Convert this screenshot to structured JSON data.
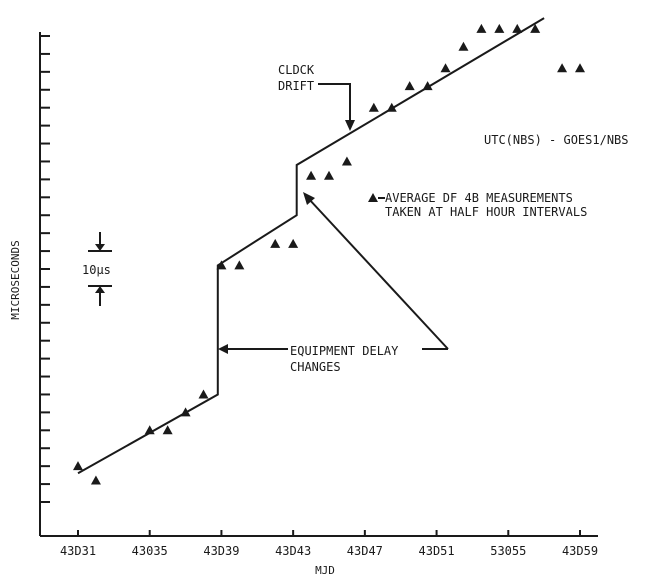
{
  "chart_data": {
    "type": "scatter",
    "title": "UTC(NBS) - GOES1/NBS",
    "xlabel": "MJD",
    "ylabel": "MICROSECONDS",
    "x_ticks": [
      "43D31",
      "43035",
      "43D39",
      "43D43",
      "43D47",
      "43D51",
      "53055",
      "43D59"
    ],
    "xlim": [
      43031,
      43059
    ],
    "ylim": [
      0,
      130
    ],
    "y_tick_step": 5,
    "grid": false,
    "scale_bar_label": "10µs",
    "legend_label": "AVERAGE DF 4B MEASUREMENTS",
    "legend_label_line2": "TAKEN AT HALF HOUR INTERVALS",
    "annotation_clock_line1": "CLDCK",
    "annotation_clock_line2": "DRIFT",
    "annotation_equipment_line1": "EQUIPMENT DELAY",
    "annotation_equipment_line2": "CHANGES",
    "series": [
      {
        "type": "scatter",
        "marker": "triangle",
        "x": [
          43031,
          43032,
          43035,
          43036,
          43037,
          43038,
          43039,
          43040,
          43042,
          43043,
          43044,
          43045,
          43046,
          43047.5,
          43048.5,
          43049.5,
          43050.5,
          43051.5,
          43052.5,
          43053.5,
          43054.5,
          43055.5,
          43056.5,
          43058,
          43059
        ],
        "y": [
          10,
          6,
          20,
          20,
          25,
          30,
          66,
          66,
          72,
          72,
          91,
          91,
          95,
          110,
          110,
          116,
          116,
          121,
          127,
          132,
          132,
          132,
          132,
          121,
          121
        ]
      },
      {
        "type": "line",
        "x": [
          43031,
          43038.8,
          43038.8,
          43043.2,
          43043.2,
          43057
        ],
        "y": [
          8,
          30,
          66,
          80,
          94,
          135
        ]
      }
    ]
  }
}
